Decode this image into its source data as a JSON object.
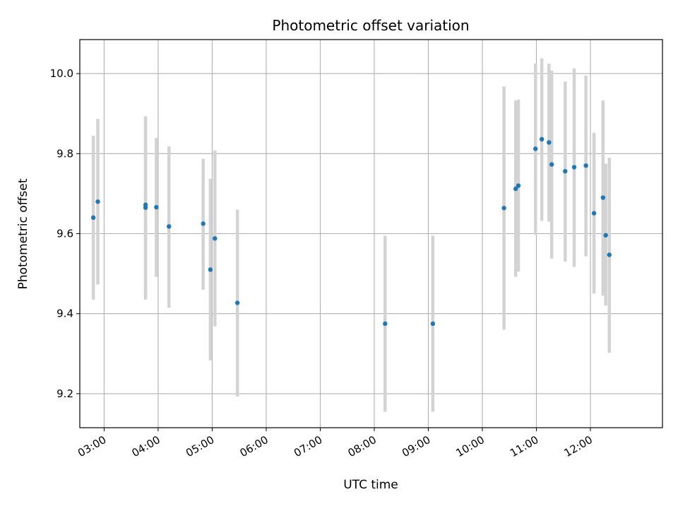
{
  "chart_data": {
    "type": "scatter",
    "title": "Photometric offset variation",
    "xlabel": "UTC time",
    "ylabel": "Photometric offset",
    "x_ticks": [
      "03:00",
      "04:00",
      "05:00",
      "06:00",
      "07:00",
      "08:00",
      "09:00",
      "10:00",
      "11:00",
      "12:00"
    ],
    "y_ticks": [
      "9.2",
      "9.4",
      "9.6",
      "9.8",
      "10.0"
    ],
    "xlim": [
      "02:33",
      "13:20"
    ],
    "ylim": [
      9.115,
      10.085
    ],
    "grid": true,
    "colors": {
      "point": "#1f77b4",
      "errorbar": "#d3d3d3",
      "grid": "#b0b0b0"
    },
    "series": [
      {
        "points": [
          {
            "x": "02:48",
            "y": 9.64,
            "lo": 9.435,
            "hi": 9.845
          },
          {
            "x": "02:53",
            "y": 9.68,
            "lo": 9.473,
            "hi": 9.887
          },
          {
            "x": "03:46",
            "y": 9.665,
            "lo": 9.435,
            "hi": 9.893
          },
          {
            "x": "03:46",
            "y": 9.672,
            "lo": 9.45,
            "hi": 9.893
          },
          {
            "x": "03:58",
            "y": 9.666,
            "lo": 9.492,
            "hi": 9.839
          },
          {
            "x": "04:12",
            "y": 9.618,
            "lo": 9.415,
            "hi": 9.818
          },
          {
            "x": "04:50",
            "y": 9.625,
            "lo": 9.46,
            "hi": 9.787
          },
          {
            "x": "04:58",
            "y": 9.51,
            "lo": 9.283,
            "hi": 9.737
          },
          {
            "x": "05:03",
            "y": 9.588,
            "lo": 9.368,
            "hi": 9.808
          },
          {
            "x": "05:28",
            "y": 9.427,
            "lo": 9.193,
            "hi": 9.66
          },
          {
            "x": "08:12",
            "y": 9.375,
            "lo": 9.155,
            "hi": 9.595
          },
          {
            "x": "09:05",
            "y": 9.375,
            "lo": 9.155,
            "hi": 9.595
          },
          {
            "x": "10:24",
            "y": 9.664,
            "lo": 9.36,
            "hi": 9.968
          },
          {
            "x": "10:37",
            "y": 9.712,
            "lo": 9.492,
            "hi": 9.933
          },
          {
            "x": "10:40",
            "y": 9.72,
            "lo": 9.505,
            "hi": 9.935
          },
          {
            "x": "10:59",
            "y": 9.812,
            "lo": 9.597,
            "hi": 10.025
          },
          {
            "x": "11:06",
            "y": 9.836,
            "lo": 9.632,
            "hi": 10.038
          },
          {
            "x": "11:14",
            "y": 9.828,
            "lo": 9.63,
            "hi": 10.025
          },
          {
            "x": "11:17",
            "y": 9.773,
            "lo": 9.538,
            "hi": 10.007
          },
          {
            "x": "11:32",
            "y": 9.756,
            "lo": 9.53,
            "hi": 9.98
          },
          {
            "x": "11:42",
            "y": 9.766,
            "lo": 9.517,
            "hi": 10.013
          },
          {
            "x": "11:55",
            "y": 9.77,
            "lo": 9.543,
            "hi": 9.995
          },
          {
            "x": "12:04",
            "y": 9.651,
            "lo": 9.45,
            "hi": 9.852
          },
          {
            "x": "12:14",
            "y": 9.69,
            "lo": 9.445,
            "hi": 9.933
          },
          {
            "x": "12:17",
            "y": 9.596,
            "lo": 9.42,
            "hi": 9.775
          },
          {
            "x": "12:21",
            "y": 9.547,
            "lo": 9.302,
            "hi": 9.79
          }
        ]
      }
    ]
  }
}
